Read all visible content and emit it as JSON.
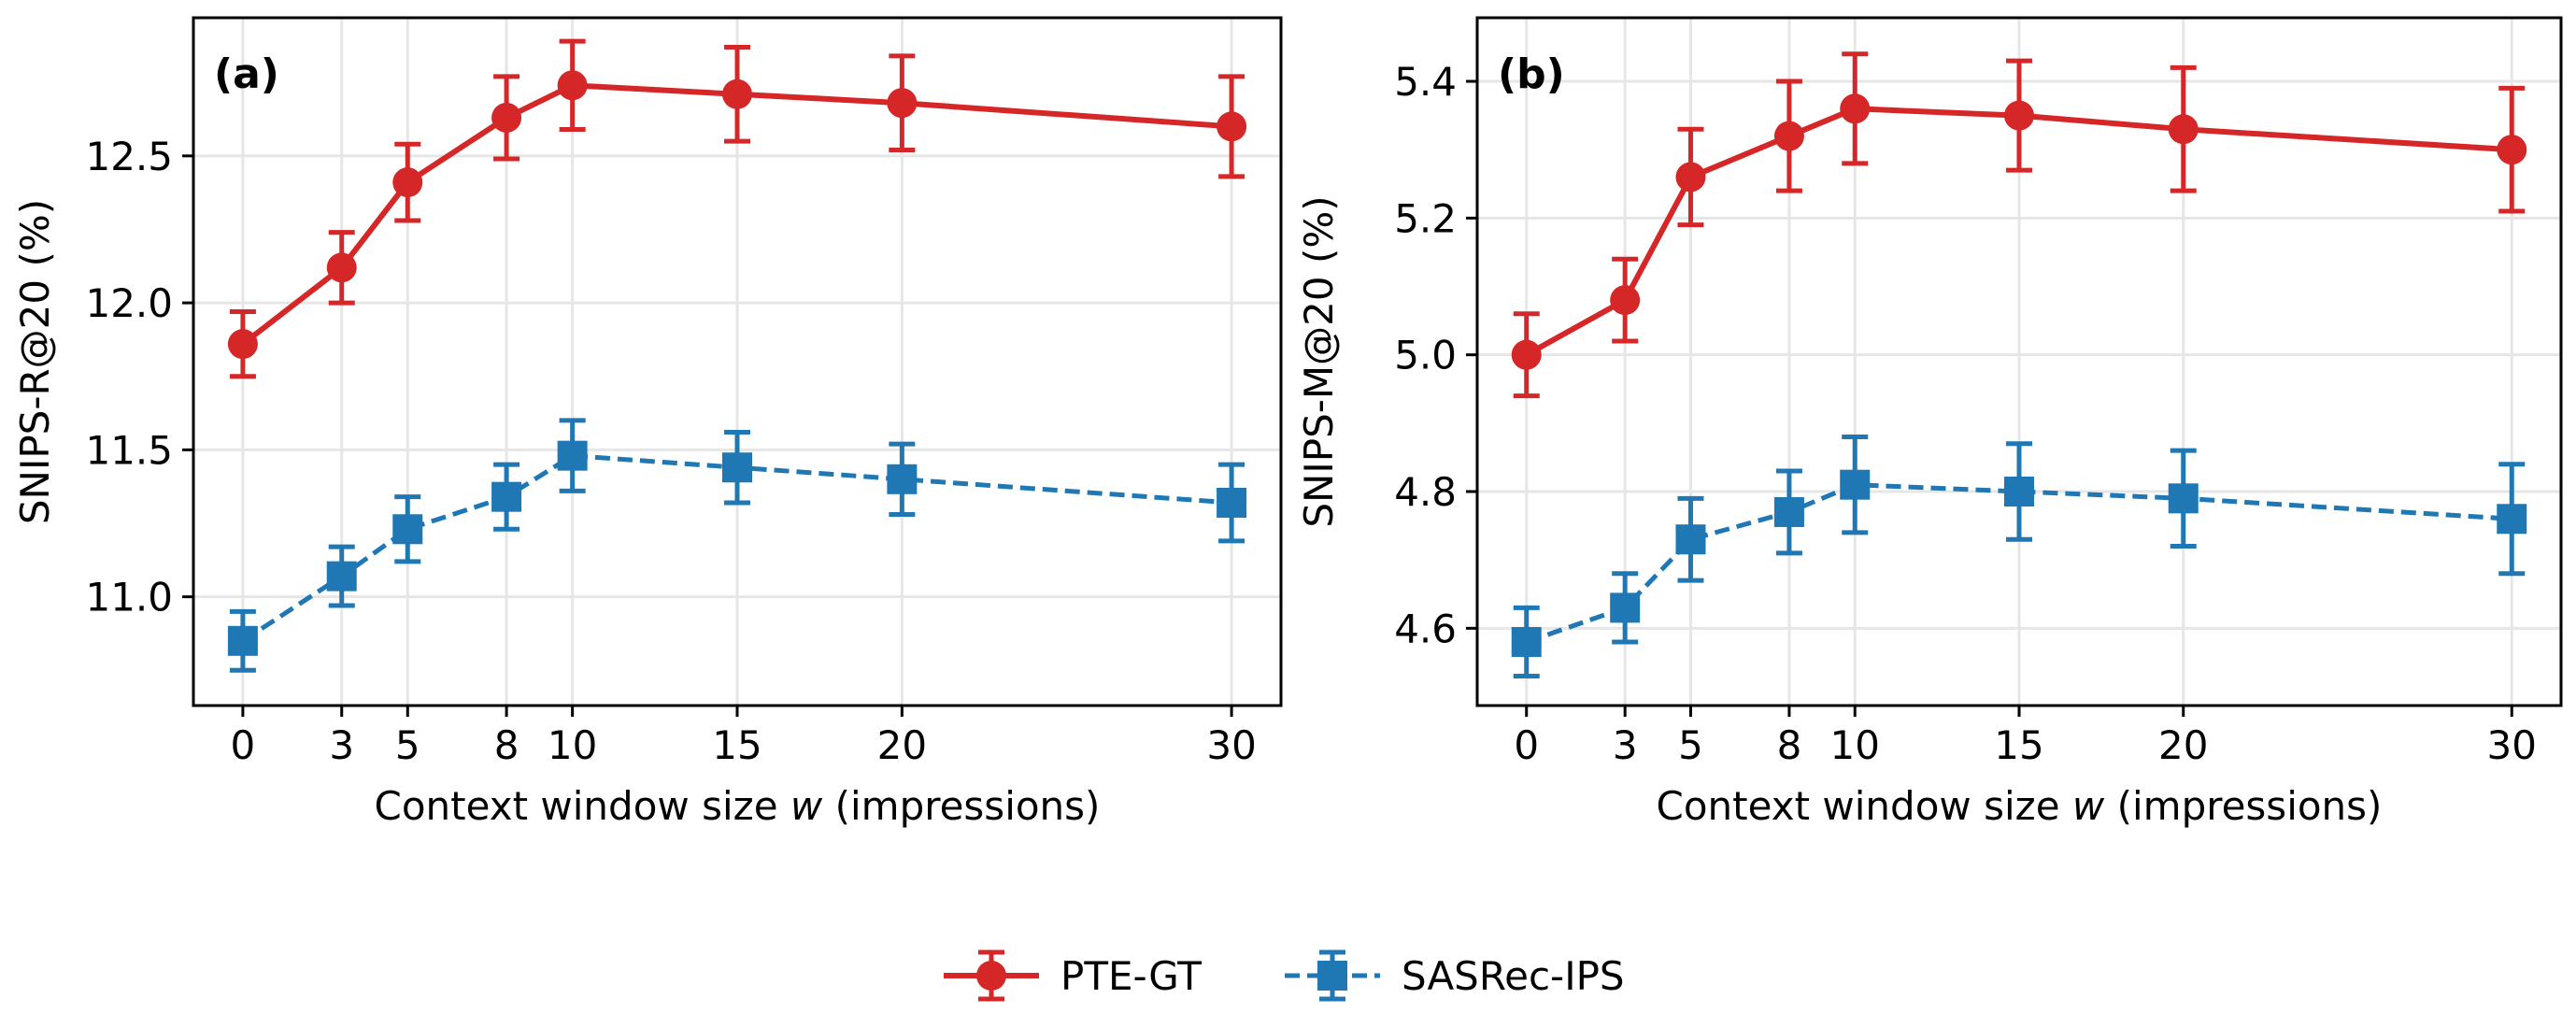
{
  "colors": {
    "pte_gt": "#d62728",
    "sasrec_ips": "#1f77b4",
    "grid": "#e6e6e6",
    "axes": "#000000"
  },
  "legend": {
    "entries": [
      {
        "key": "pte_gt",
        "label": "PTE-GT",
        "marker": "circle",
        "linestyle": "solid"
      },
      {
        "key": "sasrec_ips",
        "label": "SASRec-IPS",
        "marker": "square",
        "linestyle": "dashed"
      }
    ],
    "position": "bottom-center"
  },
  "chart_data": [
    {
      "type": "line",
      "panel_label": "(a)",
      "title": "",
      "xlabel_prefix": "Context window size ",
      "xlabel_var": "w",
      "xlabel_suffix": " (impressions)",
      "ylabel": "SNIPS-R@20 (%)",
      "x": [
        0,
        3,
        5,
        8,
        10,
        15,
        20,
        30
      ],
      "xticks": [
        "0",
        "3",
        "5",
        "8",
        "10",
        "15",
        "20",
        "30"
      ],
      "xlim": [
        -1.5,
        31.5
      ],
      "yticks": [
        11.0,
        11.5,
        12.0,
        12.5
      ],
      "ytick_labels": [
        "11.0",
        "11.5",
        "12.0",
        "12.5"
      ],
      "ylim": [
        10.63,
        12.97
      ],
      "grid": true,
      "series": [
        {
          "name": "PTE-GT",
          "key": "pte_gt",
          "values": [
            11.86,
            12.12,
            12.41,
            12.63,
            12.74,
            12.71,
            12.68,
            12.6
          ],
          "errors": [
            0.11,
            0.12,
            0.13,
            0.14,
            0.15,
            0.16,
            0.16,
            0.17
          ]
        },
        {
          "name": "SASRec-IPS",
          "key": "sasrec_ips",
          "values": [
            10.85,
            11.07,
            11.23,
            11.34,
            11.48,
            11.44,
            11.4,
            11.32
          ],
          "errors": [
            0.1,
            0.1,
            0.11,
            0.11,
            0.12,
            0.12,
            0.12,
            0.13
          ]
        }
      ]
    },
    {
      "type": "line",
      "panel_label": "(b)",
      "title": "",
      "xlabel_prefix": "Context window size ",
      "xlabel_var": "w",
      "xlabel_suffix": " (impressions)",
      "ylabel": "SNIPS-M@20 (%)",
      "x": [
        0,
        3,
        5,
        8,
        10,
        15,
        20,
        30
      ],
      "xticks": [
        "0",
        "3",
        "5",
        "8",
        "10",
        "15",
        "20",
        "30"
      ],
      "xlim": [
        -1.5,
        31.5
      ],
      "yticks": [
        4.6,
        4.8,
        5.0,
        5.2,
        5.4
      ],
      "ytick_labels": [
        "4.6",
        "4.8",
        "5.0",
        "5.2",
        "5.4"
      ],
      "ylim": [
        4.487,
        5.493
      ],
      "grid": true,
      "series": [
        {
          "name": "PTE-GT",
          "key": "pte_gt",
          "values": [
            5.0,
            5.08,
            5.26,
            5.32,
            5.36,
            5.35,
            5.33,
            5.3
          ],
          "errors": [
            0.06,
            0.06,
            0.07,
            0.08,
            0.08,
            0.08,
            0.09,
            0.09
          ]
        },
        {
          "name": "SASRec-IPS",
          "key": "sasrec_ips",
          "values": [
            4.58,
            4.63,
            4.73,
            4.77,
            4.81,
            4.8,
            4.79,
            4.76
          ],
          "errors": [
            0.05,
            0.05,
            0.06,
            0.06,
            0.07,
            0.07,
            0.07,
            0.08
          ]
        }
      ]
    }
  ]
}
